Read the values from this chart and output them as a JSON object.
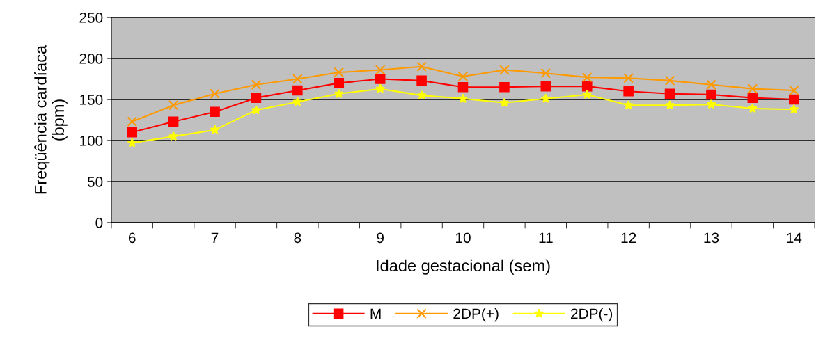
{
  "chart_data": {
    "type": "line",
    "xlabel": "Idade gestacional (sem)",
    "ylabel": "Freqüência cardíaca\n(bpm)",
    "categories": [
      "6",
      null,
      "7",
      null,
      "8",
      null,
      "9",
      null,
      "10",
      null,
      "11",
      null,
      "12",
      null,
      "13",
      null,
      "14"
    ],
    "series": [
      {
        "name": "M",
        "color": "#ff0000",
        "marker": "square",
        "values": [
          110,
          123,
          135,
          152,
          161,
          170,
          175,
          173,
          165,
          165,
          166,
          166,
          160,
          157,
          156,
          152,
          150
        ]
      },
      {
        "name": "2DP(+)",
        "color": "#ff9900",
        "marker": "cross",
        "values": [
          123,
          143,
          157,
          168,
          175,
          183,
          186,
          190,
          178,
          186,
          182,
          177,
          176,
          173,
          168,
          163,
          161
        ]
      },
      {
        "name": "2DP(-)",
        "color": "#ffff00",
        "marker": "star",
        "values": [
          97,
          105,
          113,
          137,
          147,
          157,
          163,
          155,
          151,
          146,
          151,
          156,
          143,
          143,
          144,
          139,
          138
        ]
      }
    ],
    "ylim": [
      0,
      250
    ],
    "yticks": [
      0,
      50,
      100,
      150,
      200,
      250
    ],
    "grid": "y",
    "legend": "bottom",
    "line_style": "solid"
  }
}
